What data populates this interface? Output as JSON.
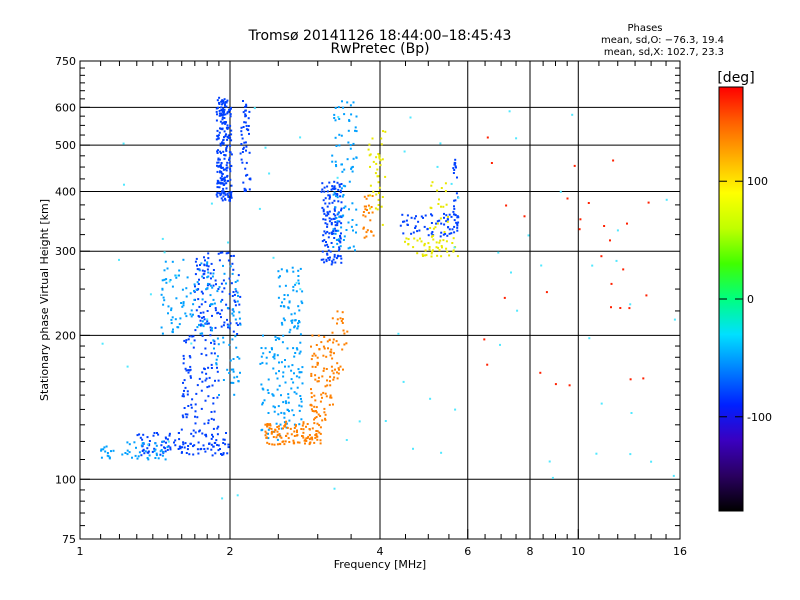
{
  "chart_data": {
    "type": "scatter",
    "title": "Tromsø 20141126 18:44:00–18:45:43",
    "subtitle": "RwPretec (Bp)",
    "xlabel": "Frequency [MHz]",
    "ylabel": "Stationary phase Virtual Height [km]",
    "x_scale": "log",
    "y_scale": "log",
    "xlim": [
      1,
      16
    ],
    "ylim": [
      75,
      750
    ],
    "x_ticks": [
      1,
      2,
      4,
      6,
      8,
      10,
      16
    ],
    "y_ticks": [
      75,
      100,
      200,
      300,
      400,
      500,
      600,
      750
    ],
    "grid_x": [
      2,
      4,
      6,
      8,
      10
    ],
    "grid_y": [
      100,
      200,
      300,
      400,
      500,
      600
    ],
    "legend_title": "Phases",
    "legend_lines": [
      "mean, sd,O: −76.3, 19.4",
      "mean, sd,X: 102.7, 23.3"
    ],
    "colorbar": {
      "label": "[deg]",
      "range": [
        -180,
        180
      ],
      "ticks": [
        100,
        0,
        -100
      ],
      "colors": [
        "#000000",
        "#2a0060",
        "#3a00c0",
        "#0020ff",
        "#0080ff",
        "#00e0ff",
        "#00ff80",
        "#40ff00",
        "#c0ff00",
        "#ffff00",
        "#ffb000",
        "#ff6000",
        "#ff0000"
      ]
    },
    "series": [
      {
        "name": "",
        "color": "#0040ff",
        "segments": [
          {
            "f": [
              1.88,
              2.02
            ],
            "h": [
              380,
              630
            ],
            "n": 220
          },
          {
            "f": [
              1.7,
              2.1
            ],
            "h": [
              200,
              300
            ],
            "n": 120
          },
          {
            "f": [
              1.3,
              2.0
            ],
            "h": [
              112,
              125
            ],
            "n": 120
          },
          {
            "f": [
              1.6,
              1.9
            ],
            "h": [
              125,
              200
            ],
            "n": 100
          },
          {
            "f": [
              3.05,
              3.35
            ],
            "h": [
              280,
              420
            ],
            "n": 140
          },
          {
            "f": [
              4.4,
              5.7
            ],
            "h": [
              320,
              360
            ],
            "n": 60
          },
          {
            "f": [
              2.1,
              2.2
            ],
            "h": [
              400,
              620
            ],
            "n": 50
          },
          {
            "f": [
              5.6,
              5.75
            ],
            "h": [
              330,
              470
            ],
            "n": 30
          }
        ]
      },
      {
        "name": "",
        "color": "#00a0ff",
        "segments": [
          {
            "f": [
              1.45,
              1.85
            ],
            "h": [
              200,
              290
            ],
            "n": 90
          },
          {
            "f": [
              1.1,
              1.5
            ],
            "h": [
              110,
              120
            ],
            "n": 50
          },
          {
            "f": [
              2.5,
              2.8
            ],
            "h": [
              130,
              280
            ],
            "n": 120
          },
          {
            "f": [
              3.2,
              3.6
            ],
            "h": [
              300,
              620
            ],
            "n": 90
          },
          {
            "f": [
              2.3,
              2.6
            ],
            "h": [
              120,
              200
            ],
            "n": 60
          },
          {
            "f": [
              1.85,
              2.1
            ],
            "h": [
              150,
              280
            ],
            "n": 60
          }
        ]
      },
      {
        "name": "",
        "color": "#ff8000",
        "segments": [
          {
            "f": [
              2.35,
              3.05
            ],
            "h": [
              118,
              132
            ],
            "n": 120
          },
          {
            "f": [
              2.9,
              3.25
            ],
            "h": [
              132,
              200
            ],
            "n": 90
          },
          {
            "f": [
              3.2,
              3.45
            ],
            "h": [
              160,
              230
            ],
            "n": 30
          },
          {
            "f": [
              3.7,
              3.9
            ],
            "h": [
              320,
              400
            ],
            "n": 25
          }
        ]
      },
      {
        "name": "",
        "color": "#e8e800",
        "segments": [
          {
            "f": [
              4.4,
              5.8
            ],
            "h": [
              290,
              320
            ],
            "n": 40
          },
          {
            "f": [
              3.75,
              4.1
            ],
            "h": [
              340,
              540
            ],
            "n": 40
          },
          {
            "f": [
              5.0,
              5.5
            ],
            "h": [
              300,
              420
            ],
            "n": 30
          }
        ]
      },
      {
        "name": "",
        "color": "#50e8ff",
        "segments": [
          {
            "f": [
              1.0,
              16.0
            ],
            "h": [
              90,
              600
            ],
            "n": 70
          }
        ]
      },
      {
        "name": "",
        "color": "#ff2000",
        "segments": [
          {
            "f": [
              6.0,
              14.0
            ],
            "h": [
              150,
              520
            ],
            "n": 30
          }
        ]
      }
    ]
  }
}
